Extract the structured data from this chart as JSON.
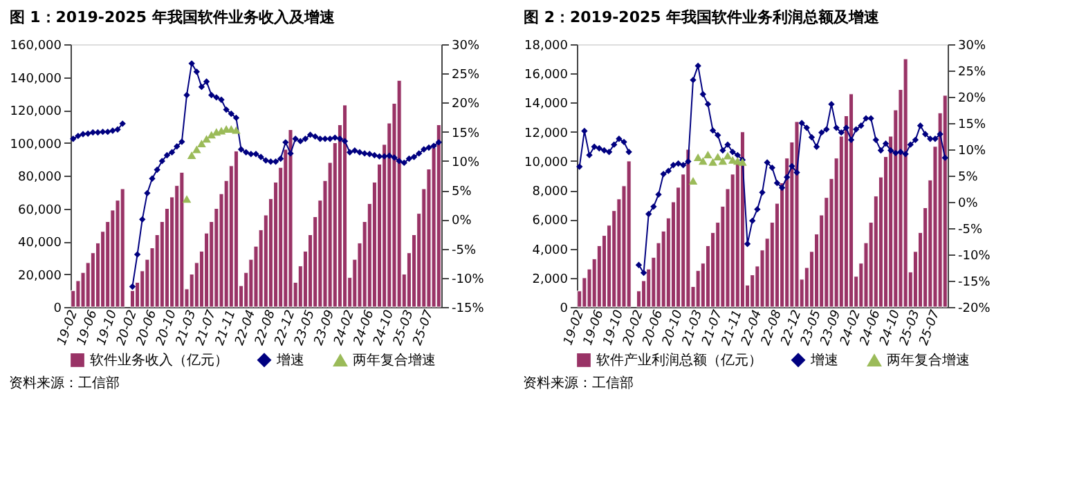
{
  "chart_data": [
    {
      "type": "bar",
      "title": "图 1：2019-2025 年我国软件业务收入及增速",
      "legend": "bottom",
      "categories": [
        "19-02",
        null,
        null,
        null,
        "19-06",
        null,
        null,
        null,
        "19-10",
        null,
        null,
        null,
        "20-02",
        null,
        null,
        null,
        "20-06",
        null,
        null,
        null,
        "20-10",
        null,
        null,
        null,
        "21-03",
        null,
        null,
        null,
        "21-07",
        null,
        null,
        null,
        "21-11",
        null,
        null,
        null,
        "22-04",
        null,
        null,
        null,
        "22-08",
        null,
        null,
        null,
        "22-12",
        null,
        null,
        null,
        "23-05",
        null,
        null,
        null,
        "23-09",
        null,
        null,
        null,
        "24-02",
        null,
        null,
        null,
        "24-06",
        null,
        null,
        null,
        "24-10",
        null,
        null,
        null,
        "25-03",
        null,
        null,
        null,
        "25-07",
        null,
        null
      ],
      "series": [
        {
          "name": "软件业务收入（亿元）",
          "color": "#993366",
          "values": [
            10000,
            16000,
            21000,
            27000,
            33000,
            39000,
            46000,
            52000,
            59000,
            65000,
            72000,
            null,
            10000,
            15000,
            22000,
            29000,
            36000,
            44000,
            52000,
            60000,
            67000,
            74000,
            82000,
            11000,
            20000,
            27000,
            34000,
            45000,
            52000,
            60000,
            69000,
            77000,
            86000,
            95000,
            13000,
            21000,
            29000,
            37000,
            47000,
            56000,
            66000,
            76000,
            85000,
            96000,
            108000,
            15000,
            25000,
            34000,
            44000,
            55000,
            65000,
            77000,
            88000,
            100000,
            111000,
            123000,
            18000,
            29000,
            39000,
            52000,
            63000,
            76000,
            87000,
            99000,
            112000,
            124000,
            138000,
            20000,
            33000,
            44000,
            57000,
            72000,
            84000,
            97000,
            111000
          ]
        },
        {
          "name": "增速",
          "type": "line",
          "axis": "y2",
          "marker": "diamond",
          "color": "#000080",
          "values": [
            13.8,
            14.3,
            14.6,
            14.7,
            14.9,
            14.9,
            15.0,
            15.0,
            15.2,
            15.4,
            16.4,
            null,
            -11.5,
            -6,
            0,
            4.5,
            7,
            8.5,
            10,
            11,
            11.5,
            12.5,
            13.3,
            21.3,
            26.7,
            25.3,
            22.7,
            23.6,
            21.3,
            20.9,
            20.5,
            18.8,
            18.1,
            17.4,
            12.0,
            11.5,
            11.2,
            11.2,
            10.7,
            10.1,
            9.9,
            9.9,
            10.4,
            13.2,
            11.3,
            13.8,
            13.4,
            13.8,
            14.5,
            14.2,
            13.8,
            13.8,
            13.8,
            14.0,
            13.8,
            13.4,
            11.5,
            11.8,
            11.5,
            11.3,
            11.2,
            11.0,
            10.8,
            10.8,
            10.9,
            10.6,
            10.0,
            9.7,
            10.4,
            10.7,
            11.3,
            12.0,
            12.3,
            12.6,
            13.2
          ]
        },
        {
          "name": "两年复合增速",
          "type": "scatter",
          "axis": "y2",
          "marker": "triangle",
          "color": "#9bbb59",
          "values": [
            null,
            null,
            null,
            null,
            null,
            null,
            null,
            null,
            null,
            null,
            null,
            null,
            null,
            null,
            null,
            null,
            null,
            null,
            null,
            null,
            null,
            null,
            null,
            3.5,
            11.0,
            12.0,
            13.0,
            13.8,
            14.5,
            15.0,
            15.2,
            15.5,
            15.5,
            15.3,
            null,
            null,
            null,
            null,
            null,
            null,
            null,
            null,
            null,
            null,
            null,
            null,
            null,
            null,
            null,
            null,
            null,
            null,
            null,
            null,
            null,
            null,
            null,
            null,
            null,
            null,
            null,
            null,
            null,
            null,
            null,
            null,
            null,
            null,
            null,
            null,
            null,
            null,
            null,
            null,
            null
          ]
        }
      ],
      "ylim": [
        0,
        160000
      ],
      "yticks": [
        0,
        {
          "value": 20000,
          "label": "20,000"
        },
        {
          "value": 40000,
          "label": "40,000"
        },
        {
          "value": 60000,
          "label": "60,000"
        },
        {
          "value": 80000,
          "label": "80,000"
        },
        {
          "value": 100000,
          "label": "100,000"
        },
        {
          "value": 120000,
          "label": "120,000"
        },
        {
          "value": 140000,
          "label": "140,000"
        },
        {
          "value": 160000,
          "label": "160,000"
        }
      ],
      "y2lim": [
        -15,
        30
      ],
      "y2ticks": [
        {
          "value": -15,
          "label": "-15%"
        },
        {
          "value": -10,
          "label": "-10%"
        },
        {
          "value": -5,
          "label": "-5%"
        },
        {
          "value": 0,
          "label": "0%"
        },
        {
          "value": 5,
          "label": "5%"
        },
        {
          "value": 10,
          "label": "10%"
        },
        {
          "value": 15,
          "label": "15%"
        },
        {
          "value": 20,
          "label": "20%"
        },
        {
          "value": 25,
          "label": "25%"
        },
        {
          "value": 30,
          "label": "30%"
        }
      ],
      "annotations": [
        "资料来源：工信部"
      ]
    },
    {
      "type": "bar",
      "title": "图 2：2019-2025 年我国软件业务利润总额及增速",
      "legend": "bottom",
      "categories": [
        "19-02",
        null,
        null,
        null,
        "19-06",
        null,
        null,
        null,
        "19-10",
        null,
        null,
        null,
        "20-02",
        null,
        null,
        null,
        "20-06",
        null,
        null,
        null,
        "20-10",
        null,
        null,
        null,
        "21-03",
        null,
        null,
        null,
        "21-07",
        null,
        null,
        null,
        "21-11",
        null,
        null,
        null,
        "22-04",
        null,
        null,
        null,
        "22-08",
        null,
        null,
        null,
        "22-12",
        null,
        null,
        null,
        "23-05",
        null,
        null,
        null,
        "23-09",
        null,
        null,
        null,
        "24-02",
        null,
        null,
        null,
        "24-06",
        null,
        null,
        null,
        "24-10",
        null,
        null,
        null,
        "25-03",
        null,
        null,
        null,
        "25-07",
        null,
        null
      ],
      "series": [
        {
          "name": "软件产业利润总额（亿元）",
          "color": "#993366",
          "values": [
            1100,
            2000,
            2600,
            3300,
            4200,
            4900,
            5600,
            6600,
            7400,
            8300,
            10000,
            null,
            1100,
            1800,
            2600,
            3400,
            4400,
            5200,
            6100,
            7200,
            8200,
            9100,
            10800,
            1400,
            2500,
            3000,
            4200,
            5100,
            5800,
            6900,
            8100,
            9100,
            10100,
            12000,
            1500,
            2200,
            2800,
            3900,
            4700,
            5800,
            7100,
            8500,
            10200,
            11300,
            12700,
            1900,
            2700,
            3800,
            5000,
            6300,
            7500,
            8800,
            10200,
            11700,
            13100,
            14600,
            2100,
            3000,
            4400,
            5800,
            7600,
            8900,
            10300,
            11700,
            13500,
            14900,
            17000,
            2400,
            3800,
            5100,
            6800,
            8700,
            11000,
            13300,
            14500
          ]
        },
        {
          "name": "增速",
          "type": "line",
          "axis": "y2",
          "marker": "diamond",
          "color": "#000080",
          "values": [
            6.7,
            13.5,
            8.9,
            10.5,
            10.2,
            9.8,
            9.5,
            10.9,
            12.0,
            11.4,
            9.5,
            null,
            -12.0,
            -13.5,
            -2.3,
            -0.9,
            1.4,
            5.3,
            5.9,
            7.0,
            7.3,
            7.0,
            7.7,
            23.2,
            25.9,
            20.5,
            18.6,
            13.6,
            12.7,
            9.8,
            10.9,
            9.5,
            8.9,
            8.0,
            -8.0,
            -3.6,
            -1.4,
            1.8,
            7.5,
            6.5,
            3.6,
            2.7,
            4.7,
            6.8,
            5.6,
            15.0,
            14.1,
            12.3,
            10.5,
            13.2,
            13.8,
            18.6,
            14.1,
            13.2,
            14.1,
            11.8,
            13.8,
            14.5,
            15.9,
            15.9,
            11.8,
            9.8,
            11.1,
            9.8,
            9.3,
            9.5,
            9.1,
            10.9,
            11.8,
            14.5,
            12.9,
            12.0,
            12.0,
            12.9,
            8.4
          ]
        },
        {
          "name": "两年复合增速",
          "type": "scatter",
          "axis": "y2",
          "marker": "triangle",
          "color": "#9bbb59",
          "values": [
            null,
            null,
            null,
            null,
            null,
            null,
            null,
            null,
            null,
            null,
            null,
            null,
            null,
            null,
            null,
            null,
            null,
            null,
            null,
            null,
            null,
            null,
            null,
            4.0,
            8.5,
            7.8,
            9.0,
            7.6,
            8.6,
            7.8,
            8.8,
            8.0,
            7.8,
            7.6,
            null,
            null,
            null,
            null,
            null,
            null,
            null,
            null,
            null,
            null,
            null,
            null,
            null,
            null,
            null,
            null,
            null,
            null,
            null,
            null,
            null,
            null,
            null,
            null,
            null,
            null,
            null,
            null,
            null,
            null,
            null,
            null,
            null,
            null,
            null,
            null,
            null,
            null,
            null,
            null,
            null
          ]
        }
      ],
      "ylim": [
        0,
        18000
      ],
      "yticks": [
        0,
        {
          "value": 2000,
          "label": "2,000"
        },
        {
          "value": 4000,
          "label": "4,000"
        },
        {
          "value": 6000,
          "label": "6,000"
        },
        {
          "value": 8000,
          "label": "8,000"
        },
        {
          "value": 10000,
          "label": "10,000"
        },
        {
          "value": 12000,
          "label": "12,000"
        },
        {
          "value": 14000,
          "label": "14,000"
        },
        {
          "value": 16000,
          "label": "16,000"
        },
        {
          "value": 18000,
          "label": "18,000"
        }
      ],
      "y2lim": [
        -20,
        30
      ],
      "y2ticks": [
        {
          "value": -20,
          "label": "-20%"
        },
        {
          "value": -15,
          "label": "-15%"
        },
        {
          "value": -10,
          "label": "-10%"
        },
        {
          "value": -5,
          "label": "-5%"
        },
        {
          "value": 0,
          "label": "0%"
        },
        {
          "value": 5,
          "label": "5%"
        },
        {
          "value": 10,
          "label": "10%"
        },
        {
          "value": 15,
          "label": "15%"
        },
        {
          "value": 20,
          "label": "20%"
        },
        {
          "value": 25,
          "label": "25%"
        },
        {
          "value": 30,
          "label": "30%"
        }
      ],
      "annotations": [
        "资料来源：工信部"
      ]
    }
  ]
}
